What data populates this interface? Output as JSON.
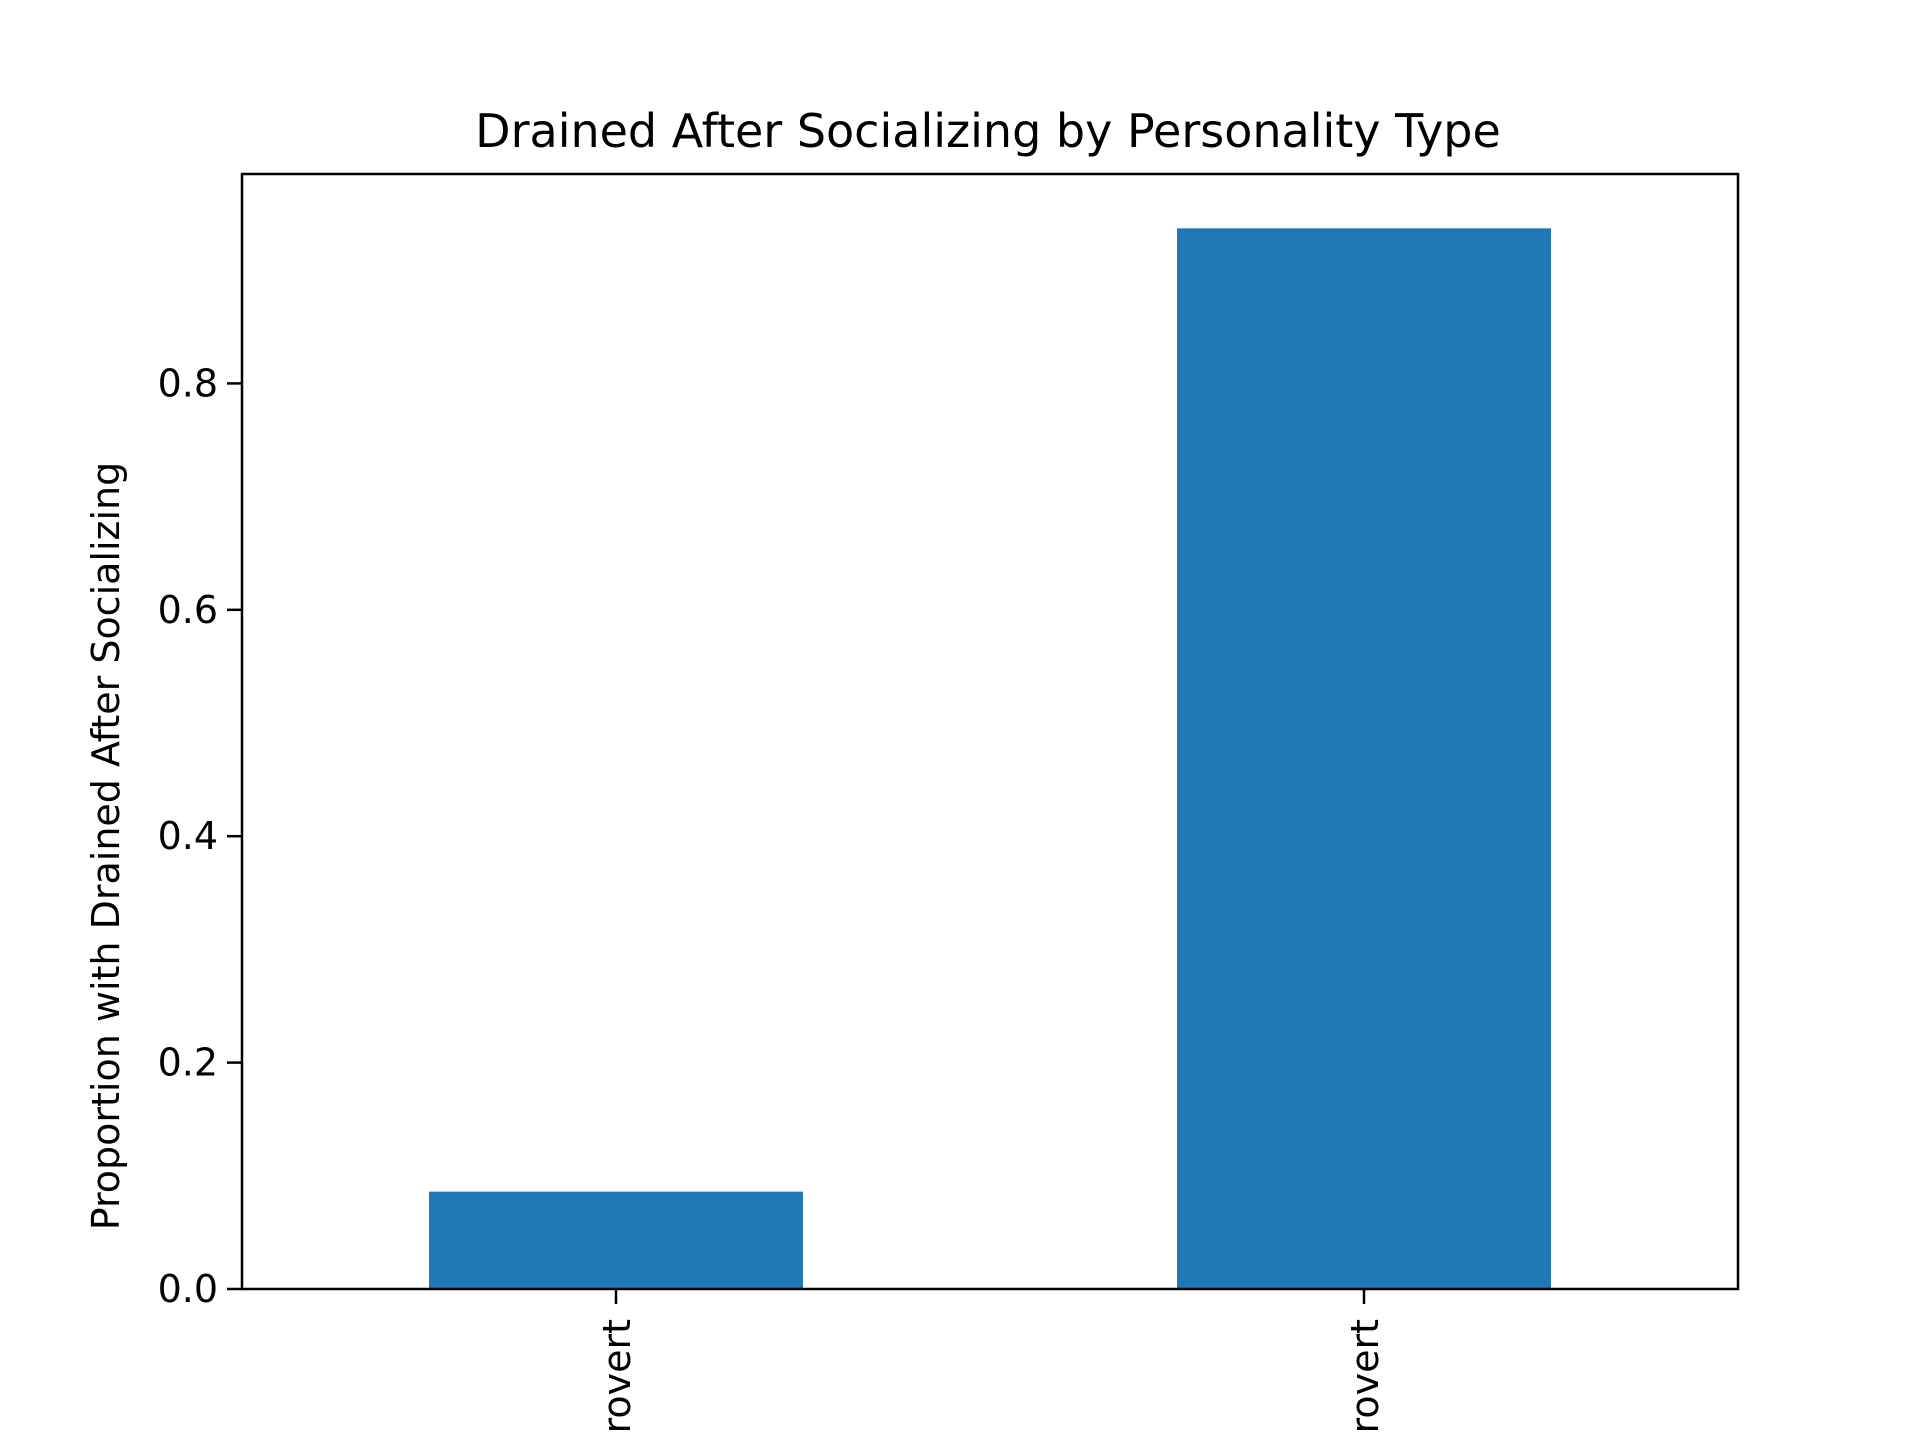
{
  "chart_data": {
    "type": "bar",
    "title": "Drained After Socializing by Personality Type",
    "xlabel": "",
    "ylabel": "Proportion with Drained After Socializing",
    "categories": [
      "Extrovert",
      "Introvert"
    ],
    "category_labels_visible": [
      "rovert",
      "rovert"
    ],
    "values": [
      0.086,
      0.937
    ],
    "ylim": [
      0,
      0.985
    ],
    "yticks": [
      0.0,
      0.2,
      0.4,
      0.6,
      0.8
    ],
    "ytick_labels": [
      "0.0",
      "0.2",
      "0.4",
      "0.6",
      "0.8"
    ],
    "grid": false,
    "legend": "none",
    "bar_color": "#1f77b4"
  }
}
